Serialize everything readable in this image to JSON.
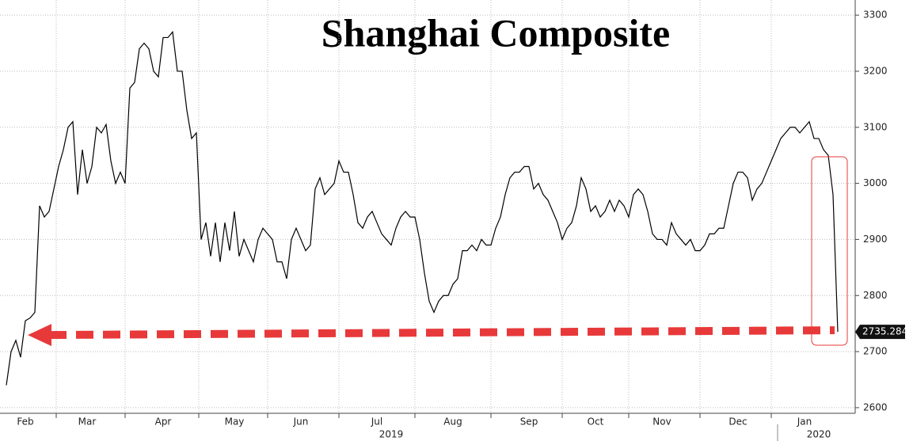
{
  "chart_data": {
    "type": "line",
    "title": "Shanghai Composite",
    "values": [
      2640,
      2700,
      2720,
      2690,
      2755,
      2760,
      2770,
      2960,
      2940,
      2950,
      2990,
      3030,
      3060,
      3100,
      3110,
      2980,
      3060,
      3000,
      3030,
      3100,
      3090,
      3105,
      3040,
      3000,
      3020,
      3000,
      3170,
      3180,
      3240,
      3250,
      3240,
      3200,
      3190,
      3260,
      3260,
      3270,
      3200,
      3200,
      3130,
      3080,
      3090,
      2900,
      2930,
      2870,
      2930,
      2860,
      2930,
      2880,
      2950,
      2870,
      2900,
      2880,
      2860,
      2900,
      2920,
      2910,
      2900,
      2860,
      2860,
      2830,
      2900,
      2920,
      2900,
      2880,
      2890,
      2990,
      3010,
      2980,
      2990,
      3000,
      3040,
      3020,
      3020,
      2980,
      2930,
      2920,
      2940,
      2950,
      2930,
      2910,
      2900,
      2890,
      2920,
      2940,
      2950,
      2940,
      2940,
      2900,
      2840,
      2790,
      2770,
      2790,
      2800,
      2800,
      2820,
      2830,
      2880,
      2880,
      2890,
      2880,
      2900,
      2890,
      2890,
      2920,
      2940,
      2980,
      3010,
      3020,
      3020,
      3030,
      3030,
      2990,
      3000,
      2980,
      2970,
      2950,
      2930,
      2900,
      2920,
      2930,
      2960,
      3010,
      2990,
      2950,
      2960,
      2940,
      2950,
      2970,
      2950,
      2970,
      2960,
      2940,
      2980,
      2990,
      2980,
      2950,
      2910,
      2900,
      2900,
      2890,
      2930,
      2910,
      2900,
      2890,
      2900,
      2880,
      2880,
      2890,
      2910,
      2910,
      2920,
      2920,
      2960,
      3000,
      3020,
      3020,
      3010,
      2970,
      2990,
      3000,
      3020,
      3040,
      3060,
      3080,
      3090,
      3100,
      3100,
      3090,
      3100,
      3110,
      3080,
      3080,
      3060,
      3050,
      2980,
      2735.284
    ],
    "color": "#000000",
    "xticks": [
      {
        "value": 4,
        "label": "Feb"
      },
      {
        "value": 17,
        "label": "Mar"
      },
      {
        "value": 33,
        "label": "Apr"
      },
      {
        "value": 48,
        "label": "May"
      },
      {
        "value": 62,
        "label": "Jun"
      },
      {
        "value": 78,
        "label": "Jul"
      },
      {
        "value": 94,
        "label": "Aug"
      },
      {
        "value": 110,
        "label": "Sep"
      },
      {
        "value": 124,
        "label": "Oct"
      },
      {
        "value": 138,
        "label": "Nov"
      },
      {
        "value": 154,
        "label": "Dec"
      },
      {
        "value": 168,
        "label": "Jan"
      }
    ],
    "year_labels": [
      {
        "value": 81,
        "label": "2019"
      },
      {
        "value": 171,
        "label": "2020"
      }
    ],
    "ylim": [
      2590,
      3327
    ],
    "yticks": [
      2600,
      2700,
      2800,
      2900,
      3000,
      3100,
      3200,
      3300
    ],
    "grid": true
  }
}
